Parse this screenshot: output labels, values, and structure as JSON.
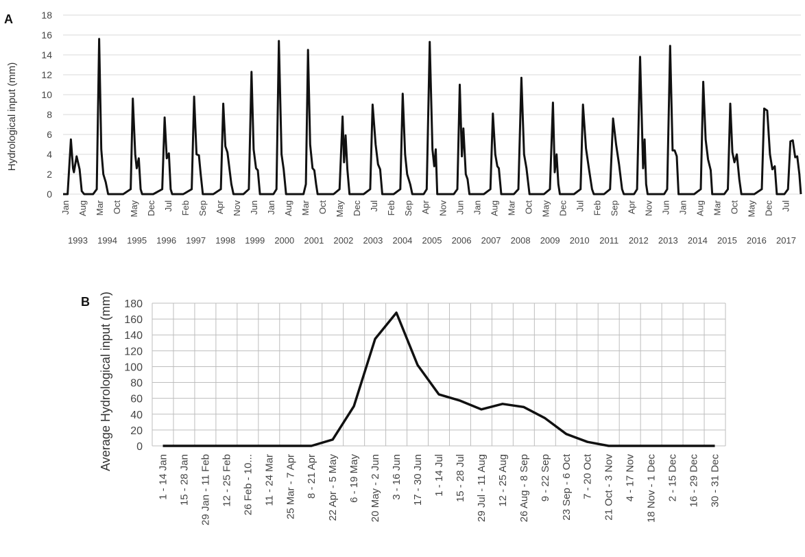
{
  "chart_data": [
    {
      "panel": "A",
      "type": "line",
      "ylabel": "Hydrological input (mm)",
      "ylim": [
        0,
        18
      ],
      "yticks": [
        0,
        2,
        4,
        6,
        8,
        10,
        12,
        14,
        16,
        18
      ],
      "grid": "horizontal",
      "x_month_labels": [
        "Jan",
        "Aug",
        "Mar",
        "Oct",
        "May",
        "Dec",
        "Jul",
        "Feb",
        "Sep",
        "Apr",
        "Nov",
        "Jun",
        "Jan",
        "Aug",
        "Mar",
        "Oct",
        "May",
        "Dec",
        "Jul",
        "Feb",
        "Sep",
        "Apr",
        "Nov",
        "Jun",
        "Jan",
        "Aug",
        "Mar",
        "Oct",
        "May",
        "Dec",
        "Jul",
        "Feb",
        "Sep",
        "Apr",
        "Nov",
        "Jun",
        "Jan",
        "Aug",
        "Mar",
        "Oct",
        "May",
        "Dec",
        "Jul"
      ],
      "x_years": [
        "1993",
        "1994",
        "1995",
        "1996",
        "1997",
        "1998",
        "1999",
        "2000",
        "2001",
        "2002",
        "2003",
        "2004",
        "2005",
        "2006",
        "2007",
        "2008",
        "2009",
        "2010",
        "2011",
        "2012",
        "2013",
        "2014",
        "2015",
        "2016",
        "2017"
      ],
      "x_start_year": 1993,
      "x_end_year": 2017.55,
      "series": [
        {
          "color": "#111111",
          "points": [
            [
              1993.0,
              0
            ],
            [
              1993.15,
              0
            ],
            [
              1993.26,
              5.5
            ],
            [
              1993.33,
              2.6
            ],
            [
              1993.36,
              2.2
            ],
            [
              1993.45,
              3.8
            ],
            [
              1993.55,
              2.5
            ],
            [
              1993.62,
              0.3
            ],
            [
              1993.7,
              0
            ],
            [
              1994.0,
              0
            ],
            [
              1994.12,
              0.5
            ],
            [
              1994.2,
              15.6
            ],
            [
              1994.27,
              4.5
            ],
            [
              1994.34,
              2.0
            ],
            [
              1994.42,
              1.2
            ],
            [
              1994.5,
              0
            ],
            [
              1995.0,
              0
            ],
            [
              1995.25,
              0.5
            ],
            [
              1995.32,
              9.6
            ],
            [
              1995.4,
              4.0
            ],
            [
              1995.45,
              2.6
            ],
            [
              1995.52,
              3.6
            ],
            [
              1995.58,
              0.5
            ],
            [
              1995.63,
              0
            ],
            [
              1996.0,
              0
            ],
            [
              1996.3,
              0.5
            ],
            [
              1996.38,
              7.7
            ],
            [
              1996.45,
              3.6
            ],
            [
              1996.52,
              4.1
            ],
            [
              1996.58,
              0.5
            ],
            [
              1996.63,
              0
            ],
            [
              1997.0,
              0
            ],
            [
              1997.28,
              0.5
            ],
            [
              1997.36,
              9.8
            ],
            [
              1997.44,
              4.0
            ],
            [
              1997.52,
              3.9
            ],
            [
              1997.58,
              2.0
            ],
            [
              1997.65,
              0
            ],
            [
              1998.0,
              0
            ],
            [
              1998.25,
              0.5
            ],
            [
              1998.33,
              9.1
            ],
            [
              1998.4,
              4.8
            ],
            [
              1998.47,
              4.2
            ],
            [
              1998.6,
              1.0
            ],
            [
              1998.67,
              0
            ],
            [
              1999.0,
              0
            ],
            [
              1999.18,
              0.5
            ],
            [
              1999.27,
              12.3
            ],
            [
              1999.34,
              4.5
            ],
            [
              1999.42,
              2.6
            ],
            [
              1999.48,
              2.4
            ],
            [
              1999.55,
              0
            ],
            [
              2000.0,
              0
            ],
            [
              2000.1,
              0.5
            ],
            [
              2000.18,
              15.4
            ],
            [
              2000.27,
              4.0
            ],
            [
              2000.34,
              2.5
            ],
            [
              2000.42,
              0
            ],
            [
              2001.0,
              0
            ],
            [
              2001.08,
              1.0
            ],
            [
              2001.15,
              14.5
            ],
            [
              2001.22,
              5.0
            ],
            [
              2001.3,
              2.6
            ],
            [
              2001.36,
              2.4
            ],
            [
              2001.42,
              1.0
            ],
            [
              2001.47,
              0
            ],
            [
              2002.0,
              0
            ],
            [
              2002.2,
              0.5
            ],
            [
              2002.3,
              7.8
            ],
            [
              2002.35,
              3.2
            ],
            [
              2002.4,
              5.9
            ],
            [
              2002.46,
              2.5
            ],
            [
              2002.53,
              0
            ],
            [
              2003.0,
              0
            ],
            [
              2003.22,
              0.5
            ],
            [
              2003.3,
              9.0
            ],
            [
              2003.4,
              5.0
            ],
            [
              2003.48,
              3.0
            ],
            [
              2003.55,
              2.5
            ],
            [
              2003.62,
              0
            ],
            [
              2004.0,
              0
            ],
            [
              2004.22,
              0.5
            ],
            [
              2004.3,
              10.1
            ],
            [
              2004.38,
              4.0
            ],
            [
              2004.45,
              2.0
            ],
            [
              2004.55,
              1.0
            ],
            [
              2004.62,
              0
            ],
            [
              2005.0,
              0
            ],
            [
              2005.1,
              0.5
            ],
            [
              2005.2,
              15.3
            ],
            [
              2005.29,
              4.5
            ],
            [
              2005.35,
              2.8
            ],
            [
              2005.4,
              4.5
            ],
            [
              2005.45,
              0
            ],
            [
              2006.0,
              0
            ],
            [
              2006.12,
              0.5
            ],
            [
              2006.2,
              11.0
            ],
            [
              2006.27,
              3.8
            ],
            [
              2006.32,
              6.6
            ],
            [
              2006.4,
              2.0
            ],
            [
              2006.46,
              1.5
            ],
            [
              2006.52,
              0
            ],
            [
              2007.0,
              0
            ],
            [
              2007.22,
              0.5
            ],
            [
              2007.3,
              8.1
            ],
            [
              2007.38,
              4.0
            ],
            [
              2007.45,
              2.8
            ],
            [
              2007.5,
              2.6
            ],
            [
              2007.58,
              0
            ],
            [
              2008.0,
              0
            ],
            [
              2008.15,
              0.5
            ],
            [
              2008.25,
              11.7
            ],
            [
              2008.34,
              4.0
            ],
            [
              2008.42,
              2.6
            ],
            [
              2008.52,
              0
            ],
            [
              2009.0,
              0
            ],
            [
              2009.2,
              0.5
            ],
            [
              2009.3,
              9.2
            ],
            [
              2009.36,
              2.2
            ],
            [
              2009.42,
              4.0
            ],
            [
              2009.48,
              1.0
            ],
            [
              2009.53,
              0
            ],
            [
              2010.0,
              0
            ],
            [
              2010.22,
              0.5
            ],
            [
              2010.3,
              9.0
            ],
            [
              2010.4,
              4.6
            ],
            [
              2010.5,
              2.5
            ],
            [
              2010.6,
              0.5
            ],
            [
              2010.66,
              0
            ],
            [
              2011.0,
              0
            ],
            [
              2011.2,
              0.5
            ],
            [
              2011.3,
              7.6
            ],
            [
              2011.4,
              5.0
            ],
            [
              2011.5,
              3.0
            ],
            [
              2011.6,
              0.5
            ],
            [
              2011.66,
              0
            ],
            [
              2012.0,
              0
            ],
            [
              2012.1,
              0.5
            ],
            [
              2012.2,
              13.8
            ],
            [
              2012.3,
              2.6
            ],
            [
              2012.35,
              5.5
            ],
            [
              2012.4,
              1.0
            ],
            [
              2012.45,
              0
            ],
            [
              2013.0,
              0
            ],
            [
              2013.1,
              0.5
            ],
            [
              2013.2,
              14.9
            ],
            [
              2013.28,
              4.4
            ],
            [
              2013.35,
              4.4
            ],
            [
              2013.42,
              3.8
            ],
            [
              2013.48,
              0
            ],
            [
              2014.0,
              0
            ],
            [
              2014.22,
              0.5
            ],
            [
              2014.3,
              11.3
            ],
            [
              2014.38,
              5.5
            ],
            [
              2014.46,
              3.5
            ],
            [
              2014.55,
              2.4
            ],
            [
              2014.6,
              0
            ],
            [
              2015.0,
              0
            ],
            [
              2015.12,
              0.5
            ],
            [
              2015.2,
              9.1
            ],
            [
              2015.27,
              4.2
            ],
            [
              2015.34,
              3.2
            ],
            [
              2015.42,
              4.0
            ],
            [
              2015.5,
              1.5
            ],
            [
              2015.57,
              0
            ],
            [
              2016.0,
              0
            ],
            [
              2016.25,
              0.5
            ],
            [
              2016.33,
              8.6
            ],
            [
              2016.43,
              8.4
            ],
            [
              2016.52,
              4.0
            ],
            [
              2016.6,
              2.5
            ],
            [
              2016.68,
              2.8
            ],
            [
              2016.75,
              0
            ],
            [
              2017.0,
              0
            ],
            [
              2017.12,
              0.5
            ],
            [
              2017.2,
              5.3
            ],
            [
              2017.28,
              5.4
            ],
            [
              2017.36,
              3.7
            ],
            [
              2017.43,
              3.8
            ],
            [
              2017.5,
              2.0
            ],
            [
              2017.55,
              0
            ]
          ]
        }
      ]
    },
    {
      "panel": "B",
      "type": "line",
      "ylabel": "Average Hydrological input (mm)",
      "ylim": [
        0,
        180
      ],
      "yticks": [
        0,
        20,
        40,
        60,
        80,
        100,
        120,
        140,
        160,
        180
      ],
      "grid": "both",
      "categories": [
        "1 - 14 Jan",
        "15 - 28 Jan",
        "29 Jan - 11 Feb",
        "12 - 25 Feb",
        "26 Feb - 10...",
        "11 - 24 Mar",
        "25 Mar - 7 Apr",
        "8 - 21 Apr",
        "22 Apr - 5 May",
        "6 - 19 May",
        "20 May - 2 Jun",
        "3 - 16 Jun",
        "17 - 30 Jun",
        "1 - 14 Jul",
        "15 - 28 Jul",
        "29 Jul - 11 Aug",
        "12 - 25 Aug",
        "26 Aug - 8 Sep",
        "9 - 22 Sep",
        "23 Sep - 6 Oct",
        "7 - 20 Oct",
        "21 Oct - 3 Nov",
        "4 - 17 Nov",
        "18 Nov - 1 Dec",
        "2 - 15 Dec",
        "16 - 29 Dec",
        "30 - 31 Dec"
      ],
      "values": [
        0,
        0,
        0,
        0,
        0,
        0,
        0,
        0,
        8,
        50,
        135,
        168,
        102,
        65,
        57,
        46,
        53,
        49,
        35,
        15,
        5,
        0,
        0,
        0,
        0,
        0,
        0
      ],
      "color": "#111111"
    }
  ]
}
